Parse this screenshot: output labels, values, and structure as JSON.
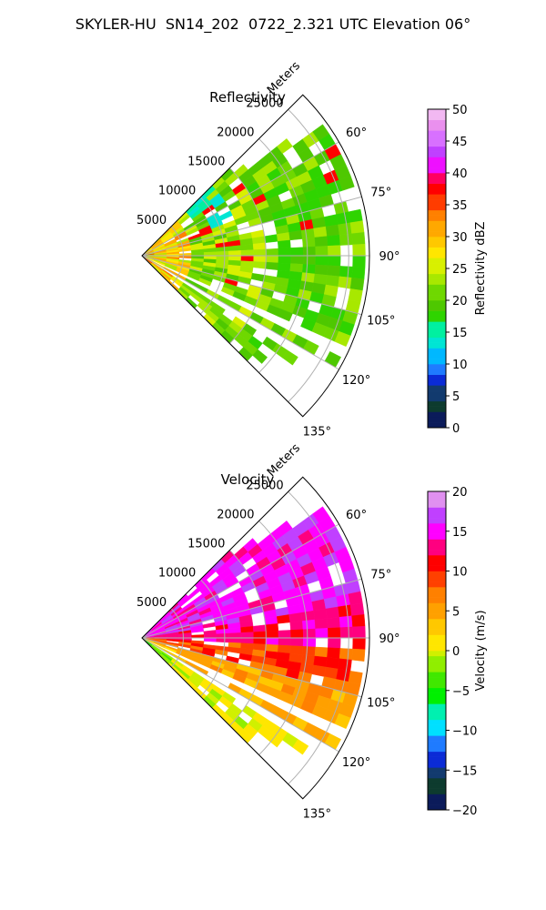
{
  "figure": {
    "title": "SKYLER-HU  SN14_202  0722_2.321 UTC Elevation 06°"
  },
  "chart_data": [
    {
      "type": "heatmap",
      "subtype": "polar-sector-radar",
      "title": "Reflectivity",
      "radial_label": "Meters",
      "r_ticks": [
        5000,
        10000,
        15000,
        20000,
        25000
      ],
      "r_tick_labels": [
        "5000",
        "10000",
        "15000",
        "20000",
        "25000"
      ],
      "rlim": [
        0,
        27500
      ],
      "theta_ticks": [
        60,
        75,
        90,
        105,
        120,
        135
      ],
      "theta_tick_labels": [
        "60°",
        "75°",
        "90°",
        "105°",
        "120°",
        "135°"
      ],
      "theta_range_deg": [
        45,
        135
      ],
      "grid": true,
      "colorbar": {
        "label": "Reflectivity dBZ",
        "range": [
          0,
          50
        ],
        "ticks": [
          0,
          5,
          10,
          15,
          20,
          25,
          30,
          35,
          40,
          45,
          50
        ],
        "tick_labels": [
          "0",
          "5",
          "10",
          "15",
          "20",
          "25",
          "30",
          "35",
          "40",
          "45",
          "50"
        ]
      },
      "typical_values": {
        "near_range_dbz": 28,
        "mid_range_dbz": 22,
        "far_range_dbz": 20,
        "min_dbz": 12,
        "max_dbz": 38
      }
    },
    {
      "type": "heatmap",
      "subtype": "polar-sector-radar",
      "title": "Velocity",
      "radial_label": "Meters",
      "r_ticks": [
        5000,
        10000,
        15000,
        20000,
        25000
      ],
      "r_tick_labels": [
        "5000",
        "10000",
        "15000",
        "20000",
        "25000"
      ],
      "rlim": [
        0,
        27500
      ],
      "theta_ticks": [
        60,
        75,
        90,
        105,
        120,
        135
      ],
      "theta_tick_labels": [
        "60°",
        "75°",
        "90°",
        "105°",
        "120°",
        "135°"
      ],
      "theta_range_deg": [
        45,
        135
      ],
      "grid": true,
      "colorbar": {
        "label": "Velocity (m/s)",
        "range": [
          -20,
          20
        ],
        "ticks": [
          -20,
          -15,
          -10,
          -5,
          0,
          5,
          10,
          15,
          20
        ],
        "tick_labels": [
          "−20",
          "−15",
          "−10",
          "−5",
          "0",
          "5",
          "10",
          "15",
          "20"
        ]
      },
      "sector_values": {
        "theta_45_to_80_ms": 15,
        "theta_80_to_92_ms": 13,
        "theta_92_to_105_ms": 9,
        "theta_105_to_122_ms": 5,
        "theta_122_to_135_ms": 0
      }
    }
  ]
}
